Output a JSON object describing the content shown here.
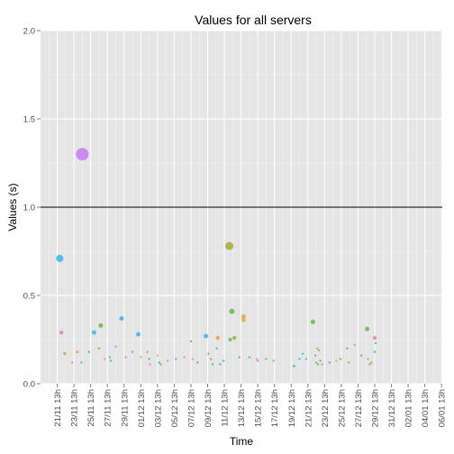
{
  "chart_data": {
    "type": "scatter",
    "title": "Values for all servers",
    "xlabel": "Time",
    "ylabel": "Values (s)",
    "ylim": [
      0,
      2
    ],
    "yticks": [
      "0.0",
      "0.5",
      "1.0",
      "1.5",
      "2.0"
    ],
    "ytick_values": [
      0,
      0.5,
      1,
      1.5,
      2
    ],
    "x_categories": [
      "21/11 13h",
      "23/11 13h",
      "25/11 13h",
      "27/11 13h",
      "29/11 13h",
      "01/12 13h",
      "03/12 13h",
      "05/12 13h",
      "07/12 13h",
      "09/12 13h",
      "11/12 13h",
      "13/12 13h",
      "15/12 13h",
      "17/12 13h",
      "19/12 13h",
      "21/12 13h",
      "23/12 13h",
      "25/12 13h",
      "27/12 13h",
      "29/12 13h",
      "31/12 13h",
      "02/01 13h",
      "04/01 13h",
      "06/01 13h"
    ],
    "reference_line_y": 1.0,
    "grid": true,
    "legend": "none",
    "colors": {
      "panel": "#e5e5e5",
      "grid_major": "#ffffff",
      "grid_minor": "#f2f2f2",
      "cyan": "#39b6e8",
      "pink": "#f07fb8",
      "orange": "#e8a33a",
      "green": "#60bd4f",
      "olive": "#a3ad3a",
      "violet": "#c77cf0",
      "teal": "#35b9a7"
    },
    "points": [
      {
        "x": 0.15,
        "y": 0.71,
        "r": 4,
        "c": "cyan"
      },
      {
        "x": 0.25,
        "y": 0.29,
        "r": 2.2,
        "c": "pink"
      },
      {
        "x": 0.45,
        "y": 0.17,
        "r": 1.5,
        "c": "olive"
      },
      {
        "x": 0.9,
        "y": 0.12,
        "r": 1.2,
        "c": "pink"
      },
      {
        "x": 1.2,
        "y": 0.18,
        "r": 1.5,
        "c": "orange"
      },
      {
        "x": 1.5,
        "y": 1.3,
        "r": 7,
        "c": "violet"
      },
      {
        "x": 1.45,
        "y": 0.12,
        "r": 1.2,
        "c": "cyan"
      },
      {
        "x": 1.9,
        "y": 0.18,
        "r": 1.2,
        "c": "teal"
      },
      {
        "x": 2.2,
        "y": 0.29,
        "r": 2.5,
        "c": "cyan"
      },
      {
        "x": 2.5,
        "y": 0.2,
        "r": 1.5,
        "c": "orange"
      },
      {
        "x": 2.6,
        "y": 0.33,
        "r": 2.5,
        "c": "green"
      },
      {
        "x": 2.85,
        "y": 0.14,
        "r": 1.2,
        "c": "pink"
      },
      {
        "x": 3.15,
        "y": 0.15,
        "r": 1.2,
        "c": "green"
      },
      {
        "x": 3.2,
        "y": 0.13,
        "r": 1.2,
        "c": "teal"
      },
      {
        "x": 3.5,
        "y": 0.21,
        "r": 1.2,
        "c": "violet"
      },
      {
        "x": 3.85,
        "y": 0.37,
        "r": 2.5,
        "c": "cyan"
      },
      {
        "x": 4.1,
        "y": 0.15,
        "r": 1.2,
        "c": "pink"
      },
      {
        "x": 4.5,
        "y": 0.18,
        "r": 1.2,
        "c": "green"
      },
      {
        "x": 4.85,
        "y": 0.28,
        "r": 2.5,
        "c": "cyan"
      },
      {
        "x": 5.0,
        "y": 0.15,
        "r": 1.2,
        "c": "orange"
      },
      {
        "x": 5.4,
        "y": 0.18,
        "r": 1.2,
        "c": "olive"
      },
      {
        "x": 5.5,
        "y": 0.14,
        "r": 1.2,
        "c": "teal"
      },
      {
        "x": 5.55,
        "y": 0.11,
        "r": 1.2,
        "c": "pink"
      },
      {
        "x": 6.0,
        "y": 0.16,
        "r": 1.2,
        "c": "orange"
      },
      {
        "x": 6.1,
        "y": 0.12,
        "r": 1.2,
        "c": "teal"
      },
      {
        "x": 6.2,
        "y": 0.11,
        "r": 1.2,
        "c": "green"
      },
      {
        "x": 6.6,
        "y": 0.13,
        "r": 1.2,
        "c": "violet"
      },
      {
        "x": 7.1,
        "y": 0.14,
        "r": 1.2,
        "c": "cyan"
      },
      {
        "x": 7.6,
        "y": 0.15,
        "r": 1.2,
        "c": "pink"
      },
      {
        "x": 8.0,
        "y": 0.24,
        "r": 1.2,
        "c": "green"
      },
      {
        "x": 8.1,
        "y": 0.14,
        "r": 1.2,
        "c": "orange"
      },
      {
        "x": 8.4,
        "y": 0.12,
        "r": 1.2,
        "c": "teal"
      },
      {
        "x": 8.9,
        "y": 0.27,
        "r": 2.5,
        "c": "cyan"
      },
      {
        "x": 9.05,
        "y": 0.17,
        "r": 1.2,
        "c": "green"
      },
      {
        "x": 9.2,
        "y": 0.14,
        "r": 1.2,
        "c": "olive"
      },
      {
        "x": 9.3,
        "y": 0.11,
        "r": 1.2,
        "c": "green"
      },
      {
        "x": 9.55,
        "y": 0.2,
        "r": 1.2,
        "c": "teal"
      },
      {
        "x": 9.6,
        "y": 0.26,
        "r": 2.2,
        "c": "orange"
      },
      {
        "x": 9.75,
        "y": 0.11,
        "r": 1.2,
        "c": "cyan"
      },
      {
        "x": 9.95,
        "y": 0.13,
        "r": 1.2,
        "c": "teal"
      },
      {
        "x": 10.3,
        "y": 0.78,
        "r": 4.5,
        "c": "olive"
      },
      {
        "x": 10.35,
        "y": 0.25,
        "r": 2,
        "c": "green"
      },
      {
        "x": 10.45,
        "y": 0.41,
        "r": 3,
        "c": "green"
      },
      {
        "x": 10.6,
        "y": 0.26,
        "r": 2.2,
        "c": "olive"
      },
      {
        "x": 10.9,
        "y": 0.15,
        "r": 1.2,
        "c": "green"
      },
      {
        "x": 11.15,
        "y": 0.38,
        "r": 2.5,
        "c": "orange"
      },
      {
        "x": 11.15,
        "y": 0.36,
        "r": 2.2,
        "c": "orange"
      },
      {
        "x": 11.5,
        "y": 0.15,
        "r": 1.2,
        "c": "teal"
      },
      {
        "x": 11.95,
        "y": 0.14,
        "r": 1.2,
        "c": "pink"
      },
      {
        "x": 12.0,
        "y": 0.13,
        "r": 1.2,
        "c": "violet"
      },
      {
        "x": 12.5,
        "y": 0.14,
        "r": 1.2,
        "c": "green"
      },
      {
        "x": 12.95,
        "y": 0.13,
        "r": 1.2,
        "c": "olive"
      },
      {
        "x": 14.15,
        "y": 0.1,
        "r": 1.2,
        "c": "teal"
      },
      {
        "x": 14.2,
        "y": 0.1,
        "r": 1.2,
        "c": "cyan"
      },
      {
        "x": 14.5,
        "y": 0.14,
        "r": 1.2,
        "c": "teal"
      },
      {
        "x": 14.7,
        "y": 0.17,
        "r": 1.2,
        "c": "cyan"
      },
      {
        "x": 14.9,
        "y": 0.14,
        "r": 1.2,
        "c": "cyan"
      },
      {
        "x": 15.3,
        "y": 0.35,
        "r": 2.5,
        "c": "green"
      },
      {
        "x": 15.45,
        "y": 0.16,
        "r": 1.2,
        "c": "green"
      },
      {
        "x": 15.5,
        "y": 0.12,
        "r": 1.2,
        "c": "olive"
      },
      {
        "x": 15.55,
        "y": 0.2,
        "r": 1.2,
        "c": "pink"
      },
      {
        "x": 15.6,
        "y": 0.11,
        "r": 1.2,
        "c": "green"
      },
      {
        "x": 15.65,
        "y": 0.19,
        "r": 1.2,
        "c": "green"
      },
      {
        "x": 15.75,
        "y": 0.13,
        "r": 1.2,
        "c": "teal"
      },
      {
        "x": 15.85,
        "y": 0.11,
        "r": 1.2,
        "c": "pink"
      },
      {
        "x": 16.3,
        "y": 0.12,
        "r": 1.2,
        "c": "cyan"
      },
      {
        "x": 16.7,
        "y": 0.13,
        "r": 1.2,
        "c": "orange"
      },
      {
        "x": 16.95,
        "y": 0.14,
        "r": 1.2,
        "c": "green"
      },
      {
        "x": 17.35,
        "y": 0.2,
        "r": 1.2,
        "c": "teal"
      },
      {
        "x": 17.45,
        "y": 0.12,
        "r": 1.2,
        "c": "olive"
      },
      {
        "x": 17.8,
        "y": 0.22,
        "r": 1.2,
        "c": "orange"
      },
      {
        "x": 18.2,
        "y": 0.16,
        "r": 1.2,
        "c": "green"
      },
      {
        "x": 18.55,
        "y": 0.31,
        "r": 2.5,
        "c": "green"
      },
      {
        "x": 18.6,
        "y": 0.14,
        "r": 1.2,
        "c": "olive"
      },
      {
        "x": 18.7,
        "y": 0.11,
        "r": 1.2,
        "c": "green"
      },
      {
        "x": 18.8,
        "y": 0.12,
        "r": 1.2,
        "c": "olive"
      },
      {
        "x": 19.0,
        "y": 0.26,
        "r": 2.2,
        "c": "pink"
      },
      {
        "x": 19.05,
        "y": 0.23,
        "r": 1.2,
        "c": "green"
      },
      {
        "x": 19.0,
        "y": 0.18,
        "r": 1.2,
        "c": "teal"
      }
    ]
  }
}
